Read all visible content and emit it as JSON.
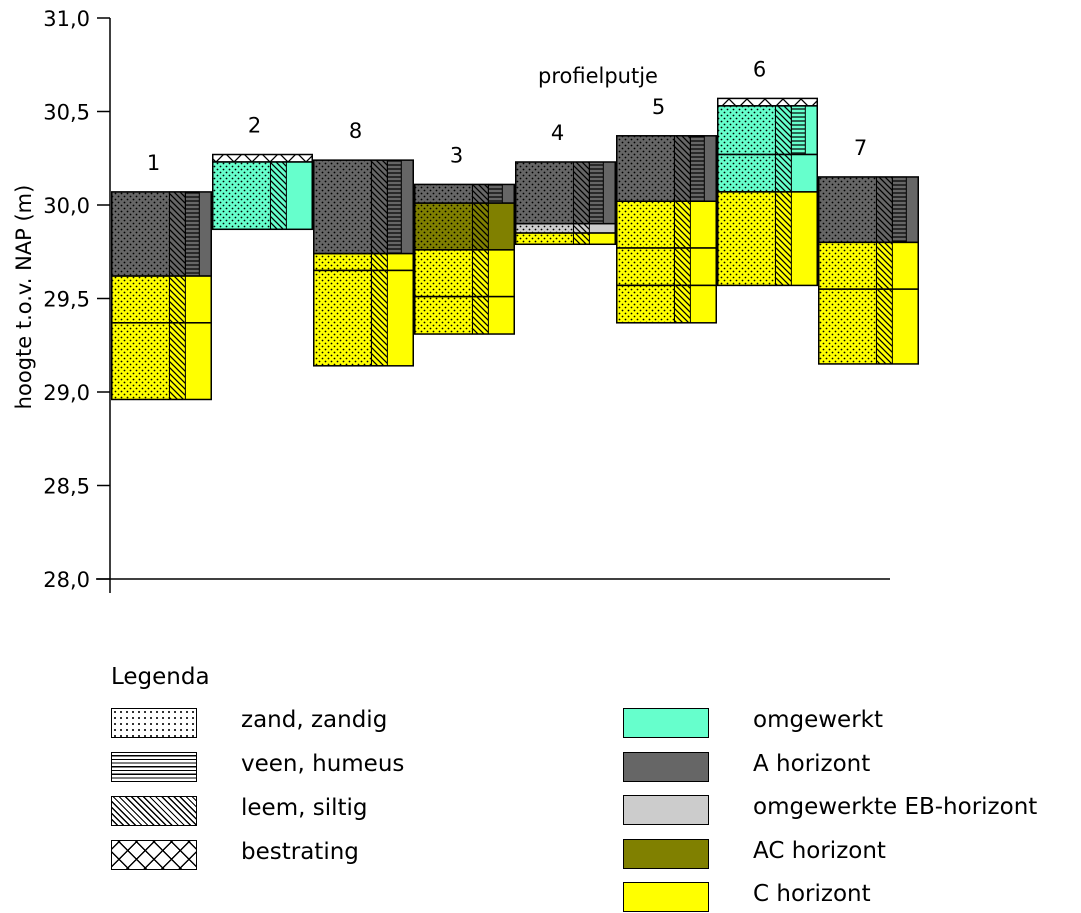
{
  "chart_data": {
    "type": "stacked-column soil profiles",
    "ylabel": "hoogte t.o.v. NAP (m)",
    "ylim": [
      28.0,
      31.0
    ],
    "yticks": [
      "28,0",
      "28,5",
      "29,0",
      "29,5",
      "30,0",
      "30,5",
      "31,0"
    ],
    "ytick_values": [
      28.0,
      28.5,
      29.0,
      29.5,
      30.0,
      30.5,
      31.0
    ],
    "annotation": "profielputje",
    "columns": [
      {
        "label": "1",
        "layers": [
          {
            "horizon": "A horizont",
            "top": 30.07,
            "bottom": 29.62,
            "textures": [
              "zand, zandig",
              "veen, humeus",
              "leem, siltig"
            ]
          },
          {
            "horizon": "C horizont",
            "top": 29.62,
            "bottom": 29.37,
            "textures": [
              "zand, zandig",
              "leem, siltig"
            ]
          },
          {
            "horizon": "C horizont",
            "top": 29.37,
            "bottom": 28.96,
            "textures": [
              "zand, zandig",
              "leem, siltig"
            ]
          }
        ]
      },
      {
        "label": "2",
        "layers": [
          {
            "horizon": "bestrating",
            "top": 30.27,
            "bottom": 30.23,
            "textures": [
              "bestrating"
            ]
          },
          {
            "horizon": "omgewerkt",
            "top": 30.23,
            "bottom": 29.87,
            "textures": [
              "zand, zandig",
              "leem, siltig"
            ]
          }
        ]
      },
      {
        "label": "8",
        "layers": [
          {
            "horizon": "A horizont",
            "top": 30.24,
            "bottom": 29.74,
            "textures": [
              "zand, zandig",
              "leem, siltig",
              "veen, humeus"
            ]
          },
          {
            "horizon": "C horizont",
            "top": 29.74,
            "bottom": 29.65,
            "textures": [
              "zand, zandig",
              "leem, siltig"
            ]
          },
          {
            "horizon": "C horizont",
            "top": 29.65,
            "bottom": 29.14,
            "textures": [
              "zand, zandig",
              "leem, siltig"
            ]
          }
        ]
      },
      {
        "label": "3",
        "layers": [
          {
            "horizon": "A horizont",
            "top": 30.11,
            "bottom": 30.01,
            "textures": [
              "zand, zandig",
              "leem, siltig",
              "veen, humeus"
            ]
          },
          {
            "horizon": "AC horizont",
            "top": 30.01,
            "bottom": 29.76,
            "textures": [
              "zand, zandig",
              "leem, siltig"
            ]
          },
          {
            "horizon": "C horizont",
            "top": 29.76,
            "bottom": 29.51,
            "textures": [
              "zand, zandig",
              "leem, siltig"
            ]
          },
          {
            "horizon": "C horizont",
            "top": 29.51,
            "bottom": 29.31,
            "textures": [
              "zand, zandig",
              "leem, siltig"
            ]
          }
        ]
      },
      {
        "label": "4",
        "layers": [
          {
            "horizon": "A horizont",
            "top": 30.23,
            "bottom": 29.9,
            "textures": [
              "zand, zandig",
              "leem, siltig",
              "veen, humeus"
            ]
          },
          {
            "horizon": "omgewerkte EB-horizont",
            "top": 29.9,
            "bottom": 29.85,
            "textures": [
              "zand, zandig",
              "leem, siltig"
            ]
          },
          {
            "horizon": "C horizont",
            "top": 29.85,
            "bottom": 29.79,
            "textures": [
              "zand, zandig",
              "leem, siltig"
            ]
          }
        ]
      },
      {
        "label": "5",
        "layers": [
          {
            "horizon": "A horizont",
            "top": 30.37,
            "bottom": 30.02,
            "textures": [
              "zand, zandig",
              "leem, siltig",
              "veen, humeus"
            ]
          },
          {
            "horizon": "C horizont",
            "top": 30.02,
            "bottom": 29.77,
            "textures": [
              "zand, zandig",
              "leem, siltig"
            ]
          },
          {
            "horizon": "C horizont",
            "top": 29.77,
            "bottom": 29.57,
            "textures": [
              "zand, zandig",
              "leem, siltig"
            ]
          },
          {
            "horizon": "C horizont",
            "top": 29.57,
            "bottom": 29.37,
            "textures": [
              "zand, zandig",
              "leem, siltig"
            ]
          }
        ]
      },
      {
        "label": "6",
        "layers": [
          {
            "horizon": "bestrating",
            "top": 30.57,
            "bottom": 30.53,
            "textures": [
              "bestrating"
            ]
          },
          {
            "horizon": "omgewerkt",
            "top": 30.53,
            "bottom": 30.27,
            "textures": [
              "zand, zandig",
              "leem, siltig",
              "veen, humeus"
            ]
          },
          {
            "horizon": "omgewerkt",
            "top": 30.27,
            "bottom": 30.07,
            "textures": [
              "zand, zandig",
              "leem, siltig"
            ]
          },
          {
            "horizon": "C horizont",
            "top": 30.07,
            "bottom": 29.57,
            "textures": [
              "zand, zandig",
              "leem, siltig"
            ]
          }
        ]
      },
      {
        "label": "7",
        "layers": [
          {
            "horizon": "A horizont",
            "top": 30.15,
            "bottom": 29.8,
            "textures": [
              "zand, zandig",
              "leem, siltig",
              "veen, humeus"
            ]
          },
          {
            "horizon": "C horizont",
            "top": 29.8,
            "bottom": 29.55,
            "textures": [
              "zand, zandig",
              "leem, siltig"
            ]
          },
          {
            "horizon": "C horizont",
            "top": 29.55,
            "bottom": 29.15,
            "textures": [
              "zand, zandig",
              "leem, siltig"
            ]
          }
        ]
      }
    ],
    "horizon_colors": {
      "omgewerkt": "#66FFCC",
      "A horizont": "#666666",
      "omgewerkte EB-horizont": "#CCCCCC",
      "AC horizont": "#808000",
      "C horizont": "#FFFF00",
      "bestrating": "#FFFFFF"
    }
  },
  "legend": {
    "title": "Legenda",
    "textures": [
      {
        "label": "zand, zandig",
        "pattern": "dots"
      },
      {
        "label": "veen, humeus",
        "pattern": "hlines"
      },
      {
        "label": "leem, siltig",
        "pattern": "diag"
      },
      {
        "label": "bestrating",
        "pattern": "crosshatch"
      }
    ],
    "horizons": [
      {
        "label": "omgewerkt",
        "color": "#66FFCC"
      },
      {
        "label": "A horizont",
        "color": "#666666"
      },
      {
        "label": "omgewerkte EB-horizont",
        "color": "#CCCCCC"
      },
      {
        "label": "AC horizont",
        "color": "#808000"
      },
      {
        "label": "C horizont",
        "color": "#FFFF00"
      }
    ]
  }
}
